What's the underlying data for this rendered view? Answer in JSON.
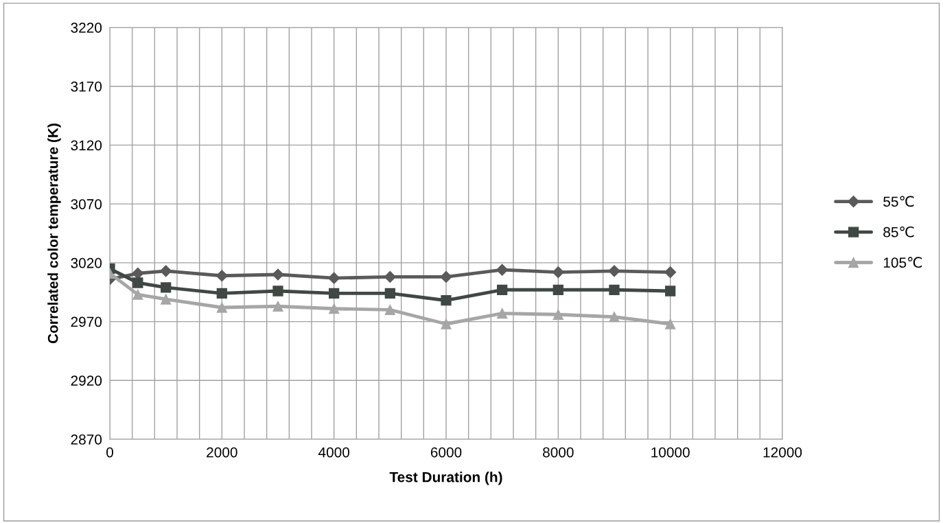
{
  "chart_data": {
    "type": "line",
    "xlabel": "Test Duration (h)",
    "ylabel": "Correlated color temperature (K)",
    "x": [
      0,
      500,
      1000,
      2000,
      3000,
      4000,
      5000,
      6000,
      7000,
      8000,
      9000,
      10000
    ],
    "series": [
      {
        "name": "55℃",
        "color": "#5a5a5a",
        "marker": "diamond",
        "values": [
          3006,
          3011,
          3013,
          3009,
          3010,
          3007,
          3008,
          3008,
          3014,
          3012,
          3013,
          3012
        ]
      },
      {
        "name": "85℃",
        "color": "#404844",
        "marker": "square",
        "values": [
          3015,
          3003,
          2999,
          2994,
          2996,
          2994,
          2994,
          2988,
          2997,
          2997,
          2997,
          2996
        ]
      },
      {
        "name": "105℃",
        "color": "#a6a6a6",
        "marker": "triangle",
        "values": [
          3011,
          2993,
          2989,
          2982,
          2983,
          2981,
          2980,
          2968,
          2977,
          2976,
          2974,
          2968
        ]
      }
    ],
    "xlim": [
      0,
      12000
    ],
    "ylim": [
      2870,
      3220
    ],
    "xticks": [
      0,
      {
        "value": 400,
        "label": null
      },
      {
        "value": 800,
        "label": null
      },
      {
        "value": 1200,
        "label": null
      },
      {
        "value": 1600,
        "label": null
      },
      2000,
      {
        "value": 2400,
        "label": null
      },
      {
        "value": 2800,
        "label": null
      },
      {
        "value": 3200,
        "label": null
      },
      {
        "value": 3600,
        "label": null
      },
      4000,
      {
        "value": 4400,
        "label": null
      },
      {
        "value": 4800,
        "label": null
      },
      {
        "value": 5200,
        "label": null
      },
      {
        "value": 5600,
        "label": null
      },
      6000,
      {
        "value": 6400,
        "label": null
      },
      {
        "value": 6800,
        "label": null
      },
      {
        "value": 7200,
        "label": null
      },
      {
        "value": 7600,
        "label": null
      },
      8000,
      {
        "value": 8400,
        "label": null
      },
      {
        "value": 8800,
        "label": null
      },
      {
        "value": 9200,
        "label": null
      },
      {
        "value": 9600,
        "label": null
      },
      10000,
      {
        "value": 10400,
        "label": null
      },
      {
        "value": 10800,
        "label": null
      },
      {
        "value": 11200,
        "label": null
      },
      {
        "value": 11600,
        "label": null
      },
      12000
    ],
    "yticks": [
      2870,
      2920,
      2970,
      3020,
      3070,
      3120,
      3170,
      3220
    ],
    "grid": true,
    "legend": "right",
    "line_style": "solid"
  }
}
